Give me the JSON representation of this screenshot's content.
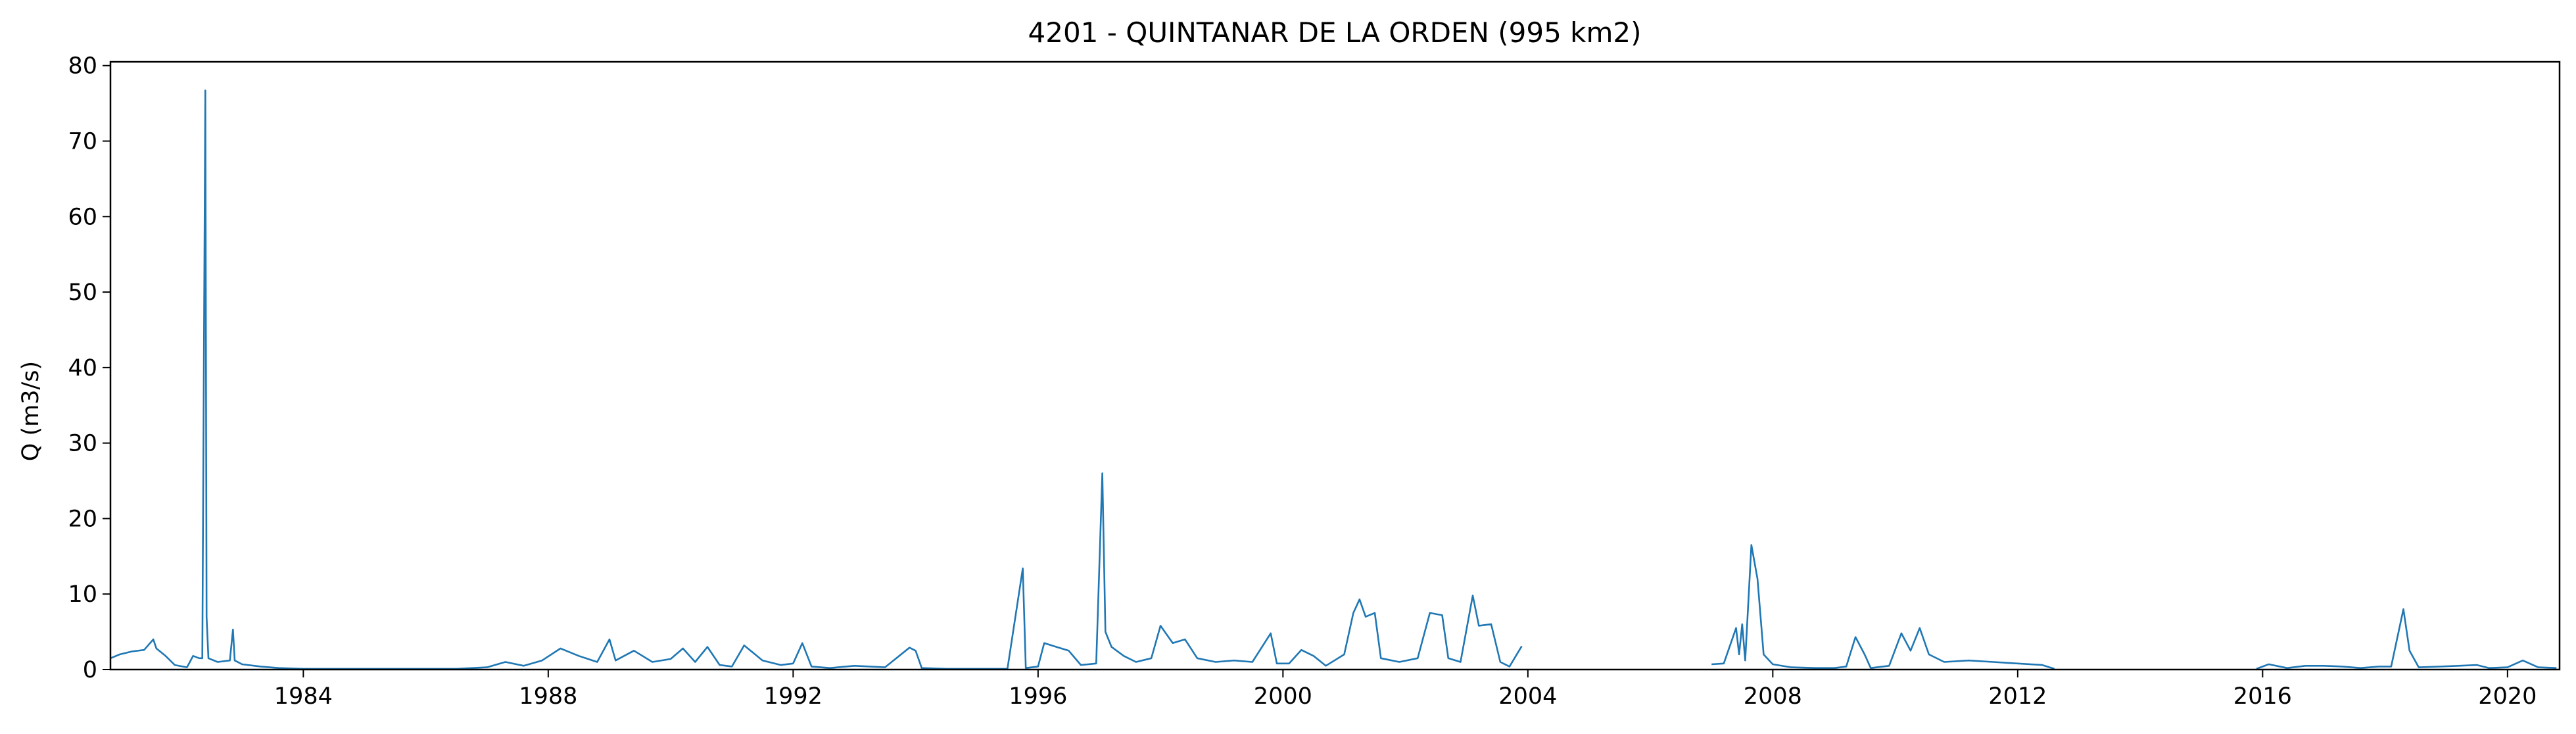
{
  "chart_data": {
    "type": "line",
    "title": "4201 - QUINTANAR DE LA ORDEN (995 km2)",
    "xlabel": "",
    "ylabel": "Q (m3/s)",
    "xlim": [
      1980.85,
      2020.85
    ],
    "ylim": [
      0,
      80.5
    ],
    "x_ticks": [
      "1984",
      "1988",
      "1992",
      "1996",
      "2000",
      "2004",
      "2008",
      "2012",
      "2016",
      "2020"
    ],
    "y_ticks": [
      "0",
      "10",
      "20",
      "30",
      "40",
      "50",
      "60",
      "70",
      "80"
    ],
    "grid": false,
    "legend": "none",
    "color": "#1f77b4",
    "series": [
      {
        "segments": [
          [
            [
              1980.85,
              1.5
            ],
            [
              1981.0,
              2.0
            ],
            [
              1981.2,
              2.4
            ],
            [
              1981.4,
              2.6
            ],
            [
              1981.55,
              4.0
            ],
            [
              1981.6,
              2.8
            ],
            [
              1981.75,
              1.8
            ],
            [
              1981.9,
              0.6
            ],
            [
              1982.1,
              0.3
            ],
            [
              1982.2,
              1.8
            ],
            [
              1982.3,
              1.5
            ],
            [
              1982.35,
              1.5
            ],
            [
              1982.4,
              76.7
            ],
            [
              1982.42,
              7.0
            ],
            [
              1982.45,
              1.5
            ],
            [
              1982.6,
              1.0
            ],
            [
              1982.8,
              1.2
            ],
            [
              1982.85,
              5.3
            ],
            [
              1982.88,
              1.2
            ],
            [
              1983.0,
              0.7
            ],
            [
              1983.3,
              0.4
            ],
            [
              1983.6,
              0.2
            ],
            [
              1984.0,
              0.1
            ],
            [
              1984.5,
              0.1
            ],
            [
              1985.0,
              0.1
            ],
            [
              1985.5,
              0.1
            ],
            [
              1986.0,
              0.1
            ],
            [
              1986.5,
              0.1
            ],
            [
              1987.0,
              0.3
            ],
            [
              1987.3,
              1.0
            ],
            [
              1987.6,
              0.5
            ],
            [
              1987.9,
              1.2
            ],
            [
              1988.2,
              2.8
            ],
            [
              1988.5,
              1.8
            ],
            [
              1988.8,
              1.0
            ],
            [
              1989.0,
              4.0
            ],
            [
              1989.1,
              1.2
            ],
            [
              1989.4,
              2.5
            ],
            [
              1989.7,
              1.0
            ],
            [
              1990.0,
              1.4
            ],
            [
              1990.2,
              2.8
            ],
            [
              1990.4,
              1.0
            ],
            [
              1990.6,
              3.0
            ],
            [
              1990.8,
              0.6
            ],
            [
              1991.0,
              0.4
            ],
            [
              1991.2,
              3.2
            ],
            [
              1991.5,
              1.2
            ],
            [
              1991.8,
              0.6
            ],
            [
              1992.0,
              0.8
            ],
            [
              1992.15,
              3.5
            ],
            [
              1992.3,
              0.4
            ],
            [
              1992.6,
              0.2
            ],
            [
              1993.0,
              0.5
            ],
            [
              1993.5,
              0.3
            ],
            [
              1993.9,
              2.9
            ],
            [
              1994.0,
              2.5
            ],
            [
              1994.1,
              0.2
            ],
            [
              1994.5,
              0.1
            ],
            [
              1995.0,
              0.1
            ],
            [
              1995.5,
              0.1
            ],
            [
              1995.75,
              13.4
            ],
            [
              1995.8,
              0.2
            ],
            [
              1996.0,
              0.4
            ],
            [
              1996.1,
              3.5
            ],
            [
              1996.3,
              3.0
            ],
            [
              1996.5,
              2.5
            ],
            [
              1996.7,
              0.6
            ],
            [
              1996.95,
              0.8
            ],
            [
              1997.05,
              26.0
            ],
            [
              1997.1,
              5.0
            ],
            [
              1997.2,
              3.0
            ],
            [
              1997.4,
              1.8
            ],
            [
              1997.6,
              1.0
            ],
            [
              1997.85,
              1.5
            ],
            [
              1998.0,
              5.8
            ],
            [
              1998.2,
              3.5
            ],
            [
              1998.4,
              4.0
            ],
            [
              1998.6,
              1.5
            ],
            [
              1998.9,
              1.0
            ],
            [
              1999.2,
              1.2
            ],
            [
              1999.5,
              1.0
            ],
            [
              1999.8,
              4.8
            ],
            [
              1999.9,
              0.8
            ],
            [
              2000.1,
              0.8
            ],
            [
              2000.3,
              2.6
            ],
            [
              2000.5,
              1.8
            ],
            [
              2000.7,
              0.5
            ],
            [
              2001.0,
              2.0
            ],
            [
              2001.15,
              7.5
            ],
            [
              2001.25,
              9.3
            ],
            [
              2001.35,
              7.0
            ],
            [
              2001.5,
              7.5
            ],
            [
              2001.6,
              1.5
            ],
            [
              2001.9,
              1.0
            ],
            [
              2002.2,
              1.5
            ],
            [
              2002.4,
              7.5
            ],
            [
              2002.6,
              7.2
            ],
            [
              2002.7,
              1.5
            ],
            [
              2002.9,
              1.0
            ],
            [
              2003.1,
              9.8
            ],
            [
              2003.2,
              5.8
            ],
            [
              2003.4,
              6.0
            ],
            [
              2003.55,
              1.0
            ],
            [
              2003.7,
              0.4
            ],
            [
              2003.9,
              3.1
            ]
          ],
          [
            [
              2007.0,
              0.7
            ],
            [
              2007.2,
              0.8
            ],
            [
              2007.4,
              5.5
            ],
            [
              2007.45,
              2.0
            ],
            [
              2007.5,
              6.0
            ],
            [
              2007.55,
              1.2
            ],
            [
              2007.65,
              16.5
            ],
            [
              2007.75,
              12.0
            ],
            [
              2007.85,
              2.0
            ],
            [
              2008.0,
              0.7
            ],
            [
              2008.3,
              0.3
            ],
            [
              2008.7,
              0.2
            ],
            [
              2009.0,
              0.2
            ],
            [
              2009.2,
              0.4
            ],
            [
              2009.35,
              4.3
            ],
            [
              2009.5,
              2.0
            ],
            [
              2009.6,
              0.2
            ],
            [
              2009.9,
              0.5
            ],
            [
              2010.1,
              4.8
            ],
            [
              2010.25,
              2.5
            ],
            [
              2010.4,
              5.5
            ],
            [
              2010.55,
              2.0
            ],
            [
              2010.8,
              1.0
            ],
            [
              2011.2,
              1.2
            ],
            [
              2011.6,
              1.0
            ],
            [
              2012.0,
              0.8
            ],
            [
              2012.4,
              0.6
            ],
            [
              2012.6,
              0.1
            ]
          ],
          [
            [
              2015.9,
              0.1
            ],
            [
              2016.1,
              0.7
            ],
            [
              2016.4,
              0.2
            ],
            [
              2016.7,
              0.5
            ],
            [
              2017.0,
              0.5
            ],
            [
              2017.3,
              0.4
            ],
            [
              2017.6,
              0.2
            ],
            [
              2017.9,
              0.4
            ],
            [
              2018.1,
              0.4
            ],
            [
              2018.3,
              8.0
            ],
            [
              2018.4,
              2.5
            ],
            [
              2018.55,
              0.3
            ],
            [
              2018.9,
              0.4
            ],
            [
              2019.2,
              0.5
            ],
            [
              2019.5,
              0.6
            ],
            [
              2019.7,
              0.2
            ],
            [
              2020.0,
              0.3
            ],
            [
              2020.25,
              1.2
            ],
            [
              2020.5,
              0.3
            ],
            [
              2020.8,
              0.2
            ]
          ]
        ]
      }
    ]
  }
}
